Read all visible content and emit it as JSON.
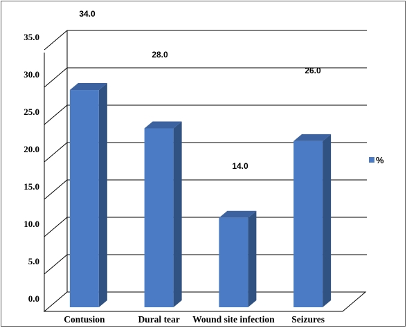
{
  "chart_data": {
    "type": "bar",
    "title": "",
    "xlabel": "",
    "ylabel": "",
    "categories": [
      "Contusion",
      "Dural tear",
      "Wound site infection",
      "Seizures"
    ],
    "series": [
      {
        "name": "%",
        "values": [
          34.0,
          28.0,
          14.0,
          26.0
        ],
        "labels": [
          "34.0",
          "28.0",
          "14.0",
          "26.0"
        ]
      }
    ],
    "ylim": [
      0,
      35
    ],
    "yticks": [
      "0.0",
      "5.0",
      "10.0",
      "15.0",
      "20.0",
      "25.0",
      "30.0",
      "35.0"
    ],
    "grid": true,
    "legend": "right",
    "colors": {
      "bar_front": "#4a7bc4",
      "bar_side": "#2f5283",
      "bar_top": "#3c63a0",
      "grid": "#000000"
    }
  }
}
